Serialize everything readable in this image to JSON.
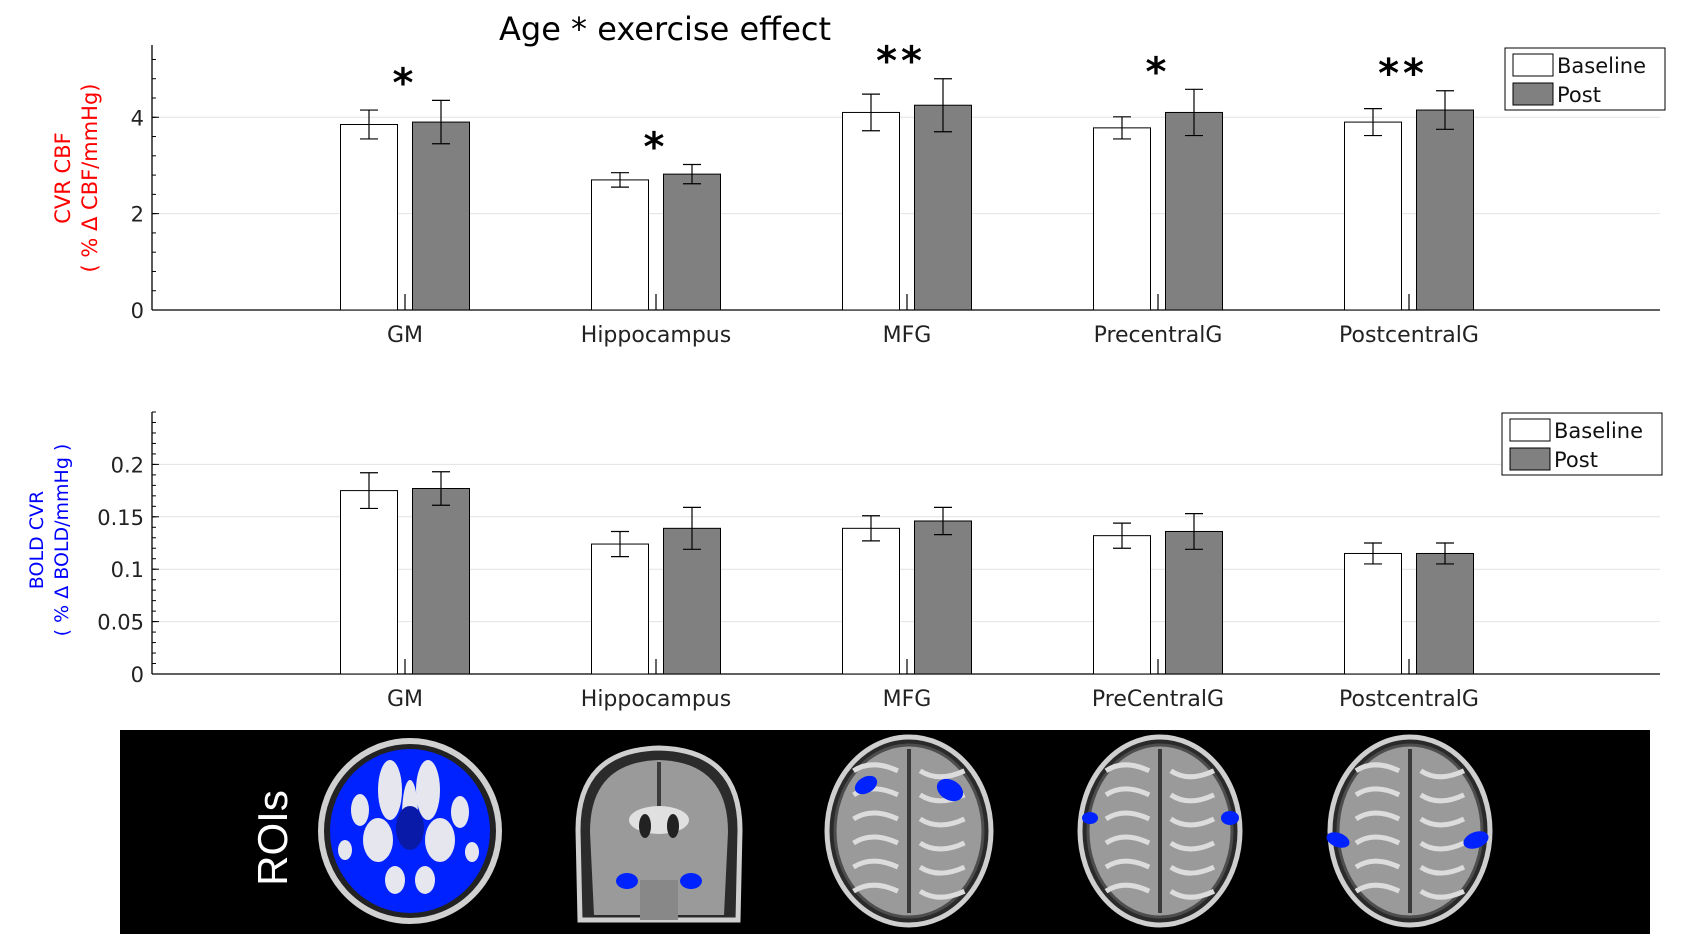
{
  "colors": {
    "baseline": "#ffffff",
    "post": "#808080",
    "cbf_label": "#ff0000",
    "bold_label": "#0000ff",
    "roi_blue": "#0022ff",
    "panel_bg": "#000000"
  },
  "chart_data": [
    {
      "type": "bar",
      "title": "Age * exercise effect",
      "ylabel_line1": "CVR CBF",
      "ylabel_line2": "( % Δ CBF/mmHg)",
      "xlabel": "",
      "categories": [
        "GM",
        "Hippocampus",
        "MFG",
        "PrecentralG",
        "PostcentralG"
      ],
      "series": [
        {
          "name": "Baseline",
          "values": [
            3.85,
            2.7,
            4.1,
            3.78,
            3.9
          ],
          "errors": [
            0.3,
            0.15,
            0.38,
            0.23,
            0.28
          ]
        },
        {
          "name": "Post",
          "values": [
            3.9,
            2.82,
            4.25,
            4.1,
            4.15
          ],
          "errors": [
            0.45,
            0.2,
            0.55,
            0.48,
            0.4
          ]
        }
      ],
      "significance": [
        "*",
        "*",
        "**",
        "*",
        "**"
      ],
      "ylim": [
        0,
        5.5
      ],
      "yticks": [
        0,
        2,
        4
      ],
      "ytick_labels": [
        "0",
        "2",
        "4"
      ],
      "legend": [
        "Baseline",
        "Post"
      ],
      "legend_position": "top-right",
      "grid": true
    },
    {
      "type": "bar",
      "title": "",
      "ylabel_line1": "BOLD CVR",
      "ylabel_line2": "( % Δ BOLD/mmHg )",
      "xlabel": "",
      "categories": [
        "GM",
        "Hippocampus",
        "MFG",
        "PreCentralG",
        "PostcentralG"
      ],
      "series": [
        {
          "name": "Baseline",
          "values": [
            0.175,
            0.124,
            0.139,
            0.132,
            0.115
          ],
          "errors": [
            0.017,
            0.012,
            0.012,
            0.012,
            0.01
          ]
        },
        {
          "name": "Post",
          "values": [
            0.177,
            0.139,
            0.146,
            0.136,
            0.115
          ],
          "errors": [
            0.016,
            0.02,
            0.013,
            0.017,
            0.01
          ]
        }
      ],
      "significance": [
        "",
        "",
        "",
        "",
        ""
      ],
      "ylim": [
        0,
        0.25
      ],
      "yticks": [
        0,
        0.05,
        0.1,
        0.15,
        0.2
      ],
      "ytick_labels": [
        "0",
        "0.05",
        "0.1",
        "0.15",
        "0.2"
      ],
      "legend": [
        "Baseline",
        "Post"
      ],
      "legend_position": "top-right",
      "grid": true
    }
  ],
  "roi_panel": {
    "label": "ROIs",
    "images": [
      {
        "name": "gm-axial-slice"
      },
      {
        "name": "hippocampus-coronal-slice"
      },
      {
        "name": "mfg-axial-slice"
      },
      {
        "name": "precentral-axial-slice"
      },
      {
        "name": "postcentral-axial-slice"
      }
    ]
  }
}
